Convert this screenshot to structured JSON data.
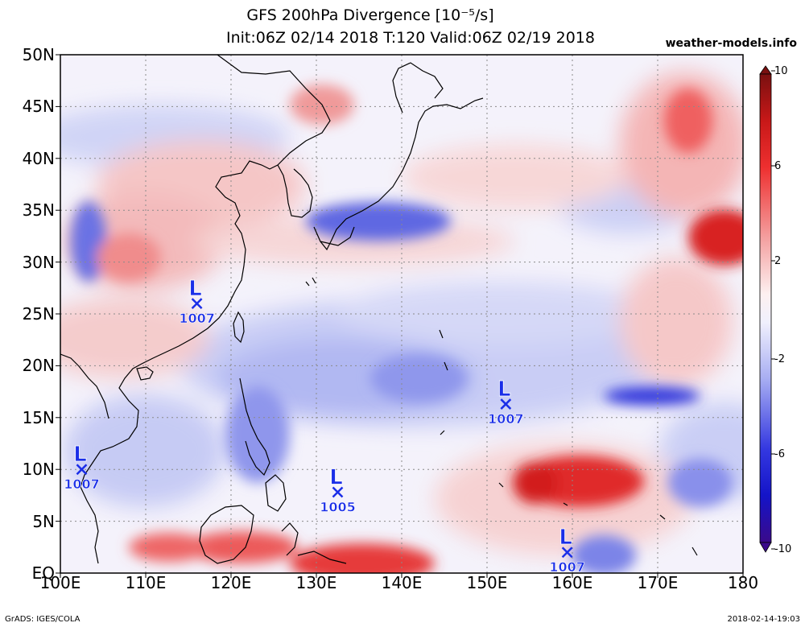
{
  "header": {
    "title_line1": "GFS 200hPa Divergence [10⁻⁵/s]",
    "title_line2": "Init:06Z 02/14 2018 T:120 Valid:06Z 02/19 2018",
    "brand": "weather-models.info"
  },
  "footer": {
    "left": "GrADS: IGES/COLA",
    "right": "2018-02-14-19:03"
  },
  "axes": {
    "lat_labels": [
      "50N",
      "45N",
      "40N",
      "35N",
      "30N",
      "25N",
      "20N",
      "15N",
      "10N",
      "5N",
      "EQ"
    ],
    "lon_labels": [
      "100E",
      "110E",
      "120E",
      "130E",
      "140E",
      "150E",
      "160E",
      "170E",
      "180"
    ]
  },
  "colorbar": {
    "labels": [
      "10",
      "6",
      "2",
      "-2",
      "-6",
      "-10"
    ],
    "colors": [
      "#7a1010",
      "#c81818",
      "#ee4040",
      "#f4a0a0",
      "#fbe0e0",
      "#ffffff",
      "#dde0fa",
      "#a8aef2",
      "#5860e0",
      "#1818d8",
      "#3a0a8a"
    ]
  },
  "lows": [
    {
      "label": "L",
      "pressure": "1007",
      "lon": 116.0,
      "lat": 26.0
    },
    {
      "label": "L",
      "pressure": "1007",
      "lon": 102.5,
      "lat": 10.0
    },
    {
      "label": "L",
      "pressure": "1005",
      "lon": 132.5,
      "lat": 7.8
    },
    {
      "label": "L",
      "pressure": "1007",
      "lon": 152.2,
      "lat": 16.3
    },
    {
      "label": "L",
      "pressure": "1007",
      "lon": 159.4,
      "lat": 2.0
    }
  ],
  "colors": {
    "low_marker": "#1a2ee8",
    "coast": "#000000",
    "grid": "#8a8a8a"
  }
}
